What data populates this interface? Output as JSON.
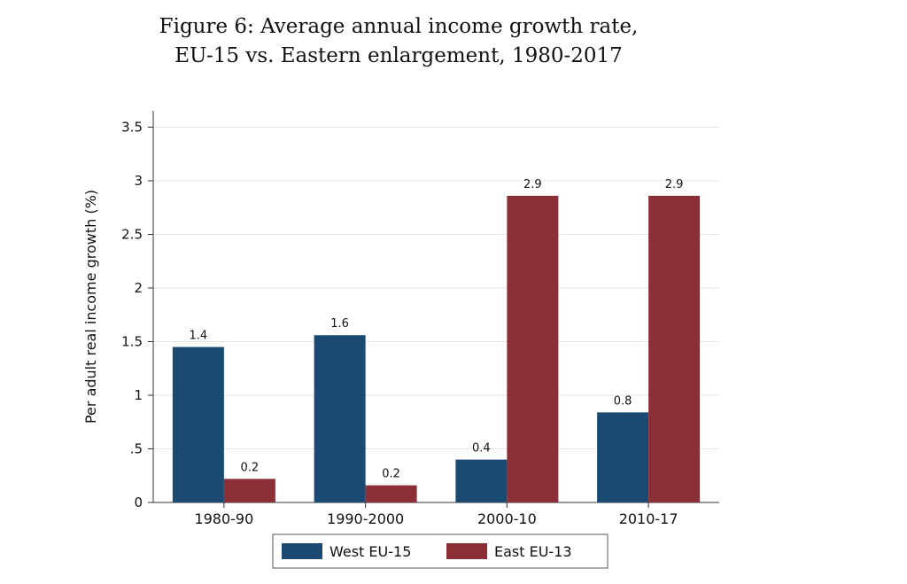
{
  "figure": {
    "title_line1": "Figure 6: Average annual income growth rate,",
    "title_line2": "EU-15 vs. Eastern enlargement, 1980-2017"
  },
  "chart_data": {
    "type": "bar",
    "categories": [
      "1980-90",
      "1990-2000",
      "2000-10",
      "2010-17"
    ],
    "series": [
      {
        "name": "West EU-15",
        "color": "#1a4a72",
        "values": [
          1.45,
          1.56,
          0.4,
          0.84
        ],
        "labels": [
          "1.4",
          "1.6",
          "0.4",
          "0.8"
        ]
      },
      {
        "name": "East EU-13",
        "color": "#8b2e36",
        "values": [
          0.22,
          0.16,
          2.86,
          2.86
        ],
        "labels": [
          "0.2",
          "0.2",
          "2.9",
          "2.9"
        ]
      }
    ],
    "ylabel": "Per adult real income growth (%)",
    "ylim": [
      0,
      3.5
    ],
    "yticks": [
      {
        "value": 0,
        "label": "0"
      },
      {
        "value": 0.5,
        "label": ".5"
      },
      {
        "value": 1,
        "label": "1"
      },
      {
        "value": 1.5,
        "label": "1.5"
      },
      {
        "value": 2,
        "label": "2"
      },
      {
        "value": 2.5,
        "label": "2.5"
      },
      {
        "value": 3,
        "label": "3"
      },
      {
        "value": 3.5,
        "label": "3.5"
      }
    ],
    "grid": true,
    "legend_position": "bottom"
  }
}
